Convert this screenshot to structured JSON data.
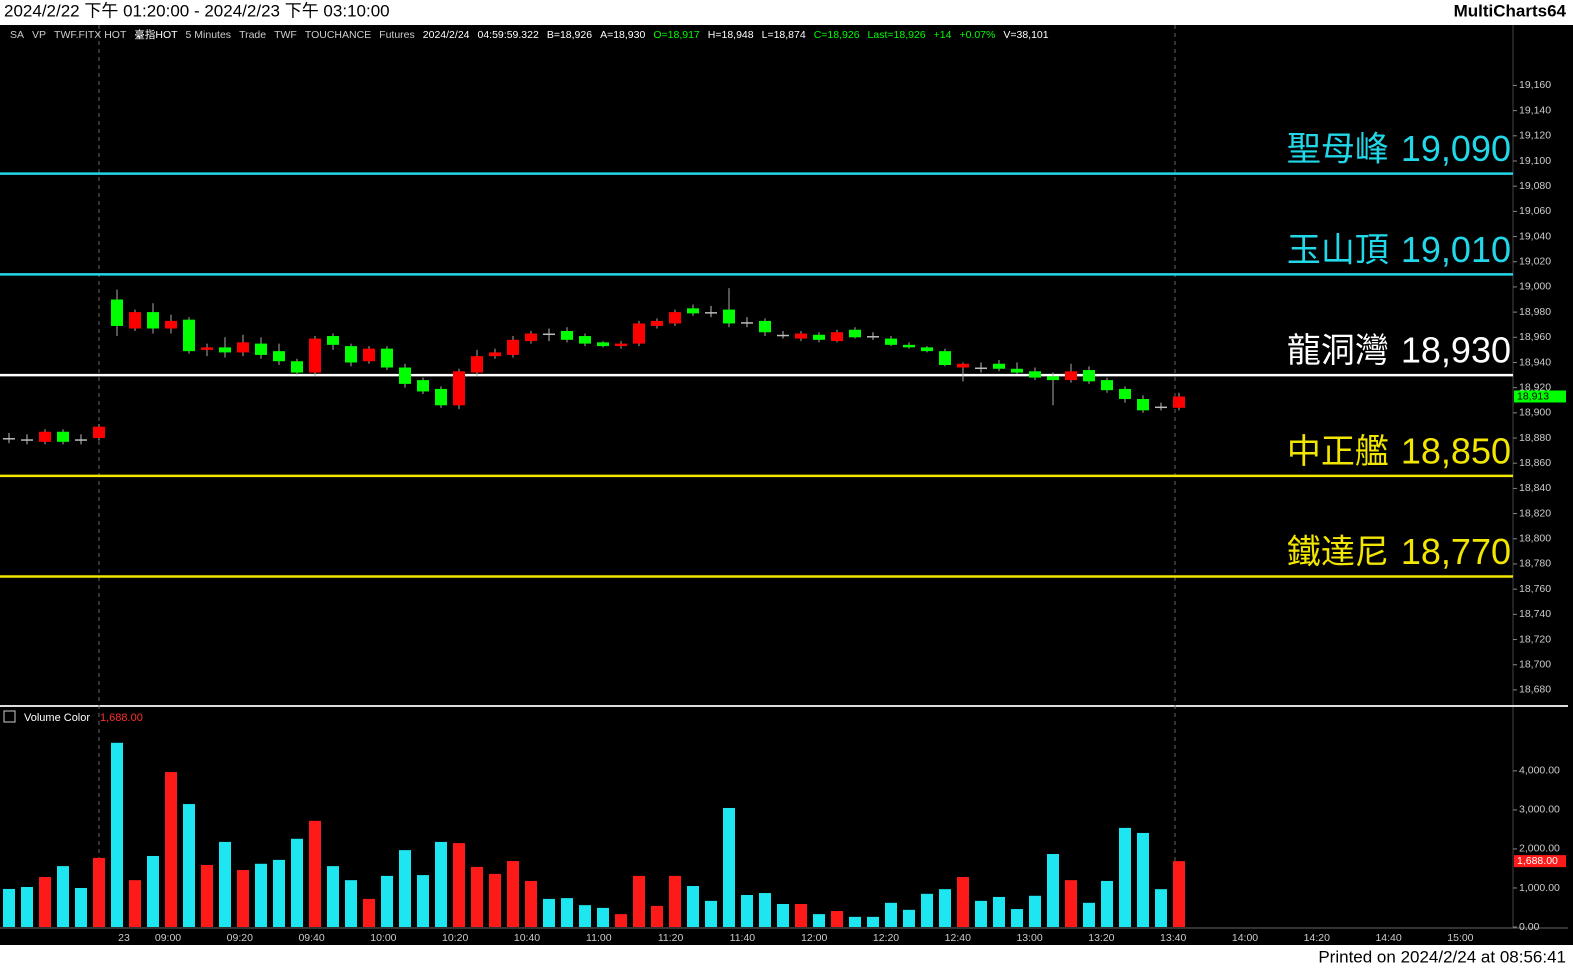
{
  "header": {
    "range": "2024/2/22 下午 01:20:00 - 2024/2/23 下午 03:10:00",
    "app": "MultiCharts64"
  },
  "info": [
    {
      "text": "SA",
      "color": "#cccccc"
    },
    {
      "text": "VP",
      "color": "#cccccc"
    },
    {
      "text": "TWF.FITX HOT",
      "color": "#cccccc"
    },
    {
      "text": "臺指HOT",
      "color": "#ffffff"
    },
    {
      "text": "5 Minutes",
      "color": "#cccccc"
    },
    {
      "text": "Trade",
      "color": "#cccccc"
    },
    {
      "text": "TWF",
      "color": "#cccccc"
    },
    {
      "text": "TOUCHANCE",
      "color": "#cccccc"
    },
    {
      "text": "Futures",
      "color": "#cccccc"
    },
    {
      "text": "2024/2/24",
      "color": "#ffffff"
    },
    {
      "text": "04:59:59.322",
      "color": "#ffffff"
    },
    {
      "text": "B=18,926",
      "color": "#ffffff"
    },
    {
      "text": "A=18,930",
      "color": "#ffffff"
    },
    {
      "text": "O=18,917",
      "color": "#00ff00"
    },
    {
      "text": "H=18,948",
      "color": "#ffffff"
    },
    {
      "text": "L=18,874",
      "color": "#ffffff"
    },
    {
      "text": "C=18,926",
      "color": "#00ff00"
    },
    {
      "text": "Last=18,926",
      "color": "#00ff00"
    },
    {
      "text": "+14",
      "color": "#00ff00"
    },
    {
      "text": "+0.07%",
      "color": "#00ff00"
    },
    {
      "text": "V=38,101",
      "color": "#ffffff"
    }
  ],
  "price": {
    "ylim": [
      18668,
      19208
    ],
    "yticks": [
      {
        "value": 19160,
        "label": "19,160"
      },
      {
        "value": 19140,
        "label": "19,140"
      },
      {
        "value": 19120,
        "label": "19,120"
      },
      {
        "value": 19100,
        "label": "19,100"
      },
      {
        "value": 19080,
        "label": "19,080"
      },
      {
        "value": 19060,
        "label": "19,060"
      },
      {
        "value": 19040,
        "label": "19,040"
      },
      {
        "value": 19020,
        "label": "19,020"
      },
      {
        "value": 19000,
        "label": "19,000"
      },
      {
        "value": 18980,
        "label": "18,980"
      },
      {
        "value": 18960,
        "label": "18,960"
      },
      {
        "value": 18940,
        "label": "18,940"
      },
      {
        "value": 18920,
        "label": "18,920"
      },
      {
        "value": 18900,
        "label": "18,900"
      },
      {
        "value": 18880,
        "label": "18,880"
      },
      {
        "value": 18860,
        "label": "18,860"
      },
      {
        "value": 18840,
        "label": "18,840"
      },
      {
        "value": 18820,
        "label": "18,820"
      },
      {
        "value": 18800,
        "label": "18,800"
      },
      {
        "value": 18780,
        "label": "18,780"
      },
      {
        "value": 18760,
        "label": "18,760"
      },
      {
        "value": 18740,
        "label": "18,740"
      },
      {
        "value": 18720,
        "label": "18,720"
      },
      {
        "value": 18700,
        "label": "18,700"
      },
      {
        "value": 18680,
        "label": "18,680"
      }
    ],
    "up_color": "#ff0000",
    "down_color": "#00ff00",
    "flat_color": "#bbbbbb",
    "open": [
      18880,
      18879,
      18877,
      18885,
      18879,
      18880,
      18990,
      18967,
      18980,
      18967,
      18974,
      18950,
      18952,
      18948,
      18955,
      18949,
      18941,
      18932,
      18961,
      18953,
      18941,
      18951,
      18936,
      18926,
      18919,
      18906,
      18932,
      18945,
      18946,
      18957,
      18963,
      18965,
      18961,
      18956,
      18953,
      18955,
      18969,
      18971,
      18983,
      18980,
      18982,
      18972,
      18973,
      18962,
      18959,
      18962,
      18957,
      18966,
      18961,
      18959,
      18954,
      18952,
      18949,
      18936,
      18936,
      18939,
      18935,
      18933,
      18929,
      18926,
      18934,
      18926,
      18919,
      18911,
      18905,
      18904
    ],
    "high": [
      18884,
      18883,
      18887,
      18887,
      18883,
      18891,
      18998,
      18982,
      18987,
      18978,
      18976,
      18955,
      18960,
      18962,
      18960,
      18955,
      18943,
      18961,
      18963,
      18955,
      18953,
      18953,
      18939,
      18928,
      18921,
      18935,
      18950,
      18951,
      18961,
      18965,
      18967,
      18968,
      18963,
      18957,
      18957,
      18973,
      18975,
      18982,
      18986,
      18985,
      18999,
      18976,
      18975,
      18965,
      18965,
      18964,
      18966,
      18968,
      18964,
      18961,
      18956,
      18953,
      18951,
      18940,
      18940,
      18942,
      18940,
      18936,
      18932,
      18939,
      18937,
      18928,
      18921,
      18914,
      18908,
      18916
    ],
    "low": [
      18876,
      18875,
      18875,
      18875,
      18875,
      18878,
      18961,
      18965,
      18963,
      18963,
      18947,
      18945,
      18944,
      18945,
      18943,
      18938,
      18930,
      18929,
      18950,
      18937,
      18939,
      18934,
      18920,
      18915,
      18904,
      18903,
      18929,
      18943,
      18944,
      18955,
      18957,
      18956,
      18953,
      18952,
      18951,
      18953,
      18967,
      18969,
      18977,
      18976,
      18968,
      18968,
      18961,
      18959,
      18957,
      18956,
      18956,
      18959,
      18958,
      18953,
      18951,
      18948,
      18937,
      18925,
      18932,
      18933,
      18931,
      18926,
      18906,
      18924,
      18923,
      18916,
      18908,
      18900,
      18902,
      18902
    ],
    "close": [
      18880,
      18879,
      18885,
      18877,
      18879,
      18889,
      18969,
      18980,
      18967,
      18973,
      18949,
      18952,
      18948,
      18956,
      18946,
      18941,
      18932,
      18959,
      18954,
      18940,
      18951,
      18936,
      18923,
      18917,
      18906,
      18933,
      18945,
      18948,
      18958,
      18963,
      18963,
      18958,
      18955,
      18953,
      18955,
      18971,
      18973,
      18980,
      18979,
      18980,
      18971,
      18972,
      18964,
      18962,
      18963,
      18958,
      18964,
      18960,
      18961,
      18954,
      18952,
      18949,
      18938,
      18939,
      18936,
      18935,
      18932,
      18928,
      18926,
      18933,
      18925,
      18918,
      18911,
      18902,
      18905,
      18913
    ],
    "last_label": "18,913",
    "levels": [
      {
        "name": "聖母峰",
        "value": 19090,
        "label": "19,090",
        "color": "#22d8e8"
      },
      {
        "name": "玉山頂",
        "value": 19010,
        "label": "19,010",
        "color": "#22d8e8"
      },
      {
        "name": "龍洞灣",
        "value": 18930,
        "label": "18,930",
        "color": "#ffffff"
      },
      {
        "name": "中正艦",
        "value": 18850,
        "label": "18,850",
        "color": "#f2e600"
      },
      {
        "name": "鐵達尼",
        "value": 18770,
        "label": "18,770",
        "color": "#f2e600"
      }
    ]
  },
  "volume": {
    "title": "Volume Color",
    "current_label": "1,688.00",
    "ylim": [
      0,
      5560
    ],
    "yticks": [
      {
        "value": 0,
        "label": "0.00"
      },
      {
        "value": 1000,
        "label": "1,000.00"
      },
      {
        "value": 2000,
        "label": "2,000.00"
      },
      {
        "value": 3000,
        "label": "3,000.00"
      },
      {
        "value": 4000,
        "label": "4,000.00"
      }
    ],
    "up_color": "#ff1a1a",
    "down_color": "#1ee6f0",
    "values": [
      975,
      1025,
      1280,
      1560,
      1000,
      1770,
      4720,
      1200,
      1820,
      3970,
      3150,
      1590,
      2180,
      1460,
      1620,
      1720,
      2260,
      2720,
      1560,
      1200,
      720,
      1310,
      1970,
      1330,
      2180,
      2150,
      1540,
      1360,
      1690,
      1180,
      720,
      740,
      560,
      490,
      330,
      1310,
      540,
      1310,
      1050,
      670,
      3050,
      820,
      870,
      590,
      590,
      330,
      410,
      260,
      260,
      620,
      440,
      850,
      970,
      1280,
      670,
      770,
      460,
      800,
      1870,
      1200,
      620,
      1180,
      2540,
      2410,
      970,
      1688
    ]
  },
  "time_labels": [
    "23",
    "09:00",
    "09:20",
    "09:40",
    "10:00",
    "10:20",
    "10:40",
    "11:00",
    "11:20",
    "11:40",
    "12:00",
    "12:20",
    "12:40",
    "13:00",
    "13:20",
    "13:40",
    "14:00",
    "14:20",
    "14:40",
    "15:00"
  ],
  "footer": "Printed on 2024/2/24 at 08:56:41"
}
